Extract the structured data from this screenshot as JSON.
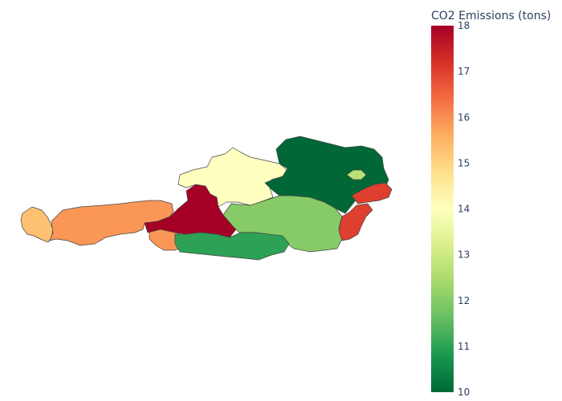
{
  "colorbar": {
    "title": "CO2 Emissions (tons)",
    "min": 10,
    "max": 18,
    "ticks": [
      "10",
      "11",
      "12",
      "13",
      "14",
      "15",
      "16",
      "17",
      "18"
    ],
    "colorscale": [
      "#006837",
      "#1a9850",
      "#66bd63",
      "#a6d96a",
      "#d9ef8b",
      "#ffffbf",
      "#fee08b",
      "#fdae61",
      "#f46d43",
      "#d73027",
      "#a50026"
    ]
  },
  "regions": [
    {
      "id": "vorarlberg",
      "value": 15.3
    },
    {
      "id": "tirol",
      "value": 15.9
    },
    {
      "id": "osttirol",
      "value": 15.9
    },
    {
      "id": "salzburg",
      "value": 18.0
    },
    {
      "id": "upper-austria",
      "value": 14.0
    },
    {
      "id": "lower-austria",
      "value": 10.0
    },
    {
      "id": "vienna",
      "value": 12.7
    },
    {
      "id": "styria",
      "value": 12.0
    },
    {
      "id": "carinthia",
      "value": 11.0
    },
    {
      "id": "burgenland-north",
      "value": 17.0
    },
    {
      "id": "burgenland-south",
      "value": 17.0
    }
  ]
}
